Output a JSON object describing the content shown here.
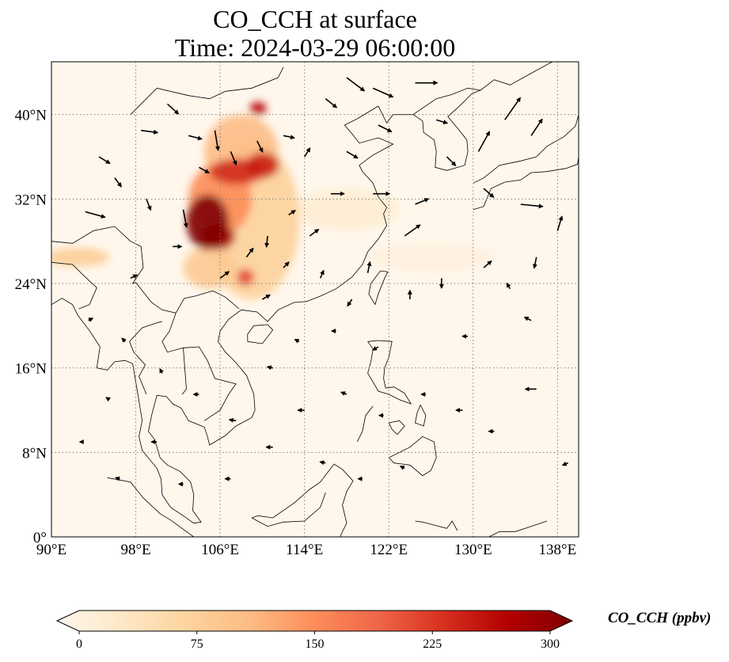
{
  "title": {
    "line1": "CO_CCH at surface",
    "line2": "Time: 2024-03-29 06:00:00"
  },
  "map": {
    "projection": "PlateCarree",
    "lon_range": [
      90,
      140
    ],
    "lat_range": [
      0,
      45
    ],
    "gridlines": true,
    "gridline_style": "dotted",
    "x_ticks": [
      {
        "lon": 90,
        "label": "90°E"
      },
      {
        "lon": 98,
        "label": "98°E"
      },
      {
        "lon": 106,
        "label": "106°E"
      },
      {
        "lon": 114,
        "label": "114°E"
      },
      {
        "lon": 122,
        "label": "122°E"
      },
      {
        "lon": 130,
        "label": "130°E"
      },
      {
        "lon": 138,
        "label": "138°E"
      }
    ],
    "y_ticks": [
      {
        "lat": 0,
        "label": "0°"
      },
      {
        "lat": 8,
        "label": "8°N"
      },
      {
        "lat": 16,
        "label": "16°N"
      },
      {
        "lat": 24,
        "label": "24°N"
      },
      {
        "lat": 32,
        "label": "32°N"
      },
      {
        "lat": 40,
        "label": "40°N"
      }
    ],
    "field": {
      "variable": "CO_CCH",
      "level": "surface",
      "colormap": "OrRd",
      "max_region": "Sichuan Basin (~104–106°E, 28–31°N)",
      "blobs": [
        {
          "lon": 104.8,
          "lat": 29.8,
          "rx": 2.0,
          "ry": 2.6,
          "value": 300
        },
        {
          "lon": 105.8,
          "lat": 28.4,
          "rx": 1.6,
          "ry": 1.2,
          "value": 270
        },
        {
          "lon": 107.6,
          "lat": 34.6,
          "rx": 2.6,
          "ry": 1.2,
          "value": 230
        },
        {
          "lon": 110.0,
          "lat": 35.2,
          "rx": 1.6,
          "ry": 1.2,
          "value": 240
        },
        {
          "lon": 109.6,
          "lat": 40.6,
          "rx": 0.8,
          "ry": 0.6,
          "value": 260
        },
        {
          "lon": 108.4,
          "lat": 24.6,
          "rx": 0.8,
          "ry": 0.8,
          "value": 210
        },
        {
          "lon": 106.0,
          "lat": 32.0,
          "rx": 3.0,
          "ry": 3.4,
          "value": 150
        },
        {
          "lon": 109.0,
          "lat": 30.0,
          "rx": 4.5,
          "ry": 7.5,
          "value": 80
        },
        {
          "lon": 108.0,
          "lat": 36.5,
          "rx": 3.5,
          "ry": 3.5,
          "value": 110
        },
        {
          "lon": 105.0,
          "lat": 25.5,
          "rx": 2.5,
          "ry": 2.0,
          "value": 90
        },
        {
          "lon": 92.5,
          "lat": 26.5,
          "rx": 3.0,
          "ry": 0.9,
          "value": 85
        },
        {
          "lon": 118.0,
          "lat": 31.0,
          "rx": 5.0,
          "ry": 2.0,
          "value": 25
        },
        {
          "lon": 126.0,
          "lat": 26.5,
          "rx": 6.0,
          "ry": 1.4,
          "value": 15
        }
      ]
    },
    "wind_vectors": [
      {
        "lon": 93.2,
        "lat": 30.8,
        "u": 1.8,
        "v": -0.5
      },
      {
        "lon": 96.0,
        "lat": 34.0,
        "u": 0.6,
        "v": -0.8
      },
      {
        "lon": 98.5,
        "lat": 38.5,
        "u": 1.5,
        "v": -0.2
      },
      {
        "lon": 101.0,
        "lat": 41.0,
        "u": 1.0,
        "v": -0.9
      },
      {
        "lon": 103.0,
        "lat": 38.0,
        "u": 1.2,
        "v": -0.3
      },
      {
        "lon": 104.0,
        "lat": 35.0,
        "u": 0.9,
        "v": -0.5
      },
      {
        "lon": 105.5,
        "lat": 38.5,
        "u": 0.3,
        "v": -1.8
      },
      {
        "lon": 107.0,
        "lat": 36.5,
        "u": 0.5,
        "v": -1.2
      },
      {
        "lon": 109.5,
        "lat": 37.5,
        "u": 0.5,
        "v": -1.0
      },
      {
        "lon": 112.0,
        "lat": 38.0,
        "u": 1.0,
        "v": -0.2
      },
      {
        "lon": 114.0,
        "lat": 36.0,
        "u": 0.5,
        "v": 0.8
      },
      {
        "lon": 116.0,
        "lat": 41.5,
        "u": 1.0,
        "v": -0.8
      },
      {
        "lon": 118.0,
        "lat": 43.5,
        "u": 1.6,
        "v": -1.2
      },
      {
        "lon": 120.5,
        "lat": 42.5,
        "u": 1.8,
        "v": -0.8
      },
      {
        "lon": 124.5,
        "lat": 43.0,
        "u": 2.0,
        "v": 0.0
      },
      {
        "lon": 121.0,
        "lat": 39.0,
        "u": 1.2,
        "v": -0.6
      },
      {
        "lon": 126.5,
        "lat": 39.5,
        "u": 1.0,
        "v": -0.3
      },
      {
        "lon": 127.5,
        "lat": 36.0,
        "u": 0.8,
        "v": -0.8
      },
      {
        "lon": 130.5,
        "lat": 36.5,
        "u": 1.0,
        "v": 1.8
      },
      {
        "lon": 133.0,
        "lat": 39.5,
        "u": 1.4,
        "v": 2.0
      },
      {
        "lon": 135.5,
        "lat": 38.0,
        "u": 1.0,
        "v": 1.5
      },
      {
        "lon": 131.0,
        "lat": 33.0,
        "u": 0.9,
        "v": -0.8
      },
      {
        "lon": 134.5,
        "lat": 31.5,
        "u": 2.0,
        "v": -0.2
      },
      {
        "lon": 138.0,
        "lat": 29.0,
        "u": 0.4,
        "v": 1.3
      },
      {
        "lon": 136.0,
        "lat": 26.5,
        "u": -0.2,
        "v": -1.0
      },
      {
        "lon": 124.5,
        "lat": 31.5,
        "u": 1.2,
        "v": 0.5
      },
      {
        "lon": 120.5,
        "lat": 32.5,
        "u": 1.5,
        "v": 0.0
      },
      {
        "lon": 123.5,
        "lat": 28.5,
        "u": 1.4,
        "v": 1.0
      },
      {
        "lon": 116.5,
        "lat": 32.5,
        "u": 1.2,
        "v": 0.0
      },
      {
        "lon": 114.5,
        "lat": 28.5,
        "u": 0.8,
        "v": 0.6
      },
      {
        "lon": 112.5,
        "lat": 30.5,
        "u": 0.6,
        "v": 0.4
      },
      {
        "lon": 110.5,
        "lat": 28.5,
        "u": -0.1,
        "v": -1.0
      },
      {
        "lon": 108.5,
        "lat": 26.5,
        "u": 0.6,
        "v": 0.8
      },
      {
        "lon": 106.0,
        "lat": 24.5,
        "u": 0.8,
        "v": 0.6
      },
      {
        "lon": 110.0,
        "lat": 22.5,
        "u": 0.7,
        "v": 0.4
      },
      {
        "lon": 112.0,
        "lat": 25.5,
        "u": 0.5,
        "v": 0.5
      },
      {
        "lon": 115.5,
        "lat": 24.5,
        "u": 0.3,
        "v": 0.7
      },
      {
        "lon": 118.5,
        "lat": 22.5,
        "u": -0.4,
        "v": -0.6
      },
      {
        "lon": 120.0,
        "lat": 25.0,
        "u": 0.2,
        "v": 1.0
      },
      {
        "lon": 124.0,
        "lat": 22.5,
        "u": 0.0,
        "v": 0.8
      },
      {
        "lon": 127.0,
        "lat": 24.5,
        "u": 0.0,
        "v": -0.9
      },
      {
        "lon": 131.0,
        "lat": 25.5,
        "u": 0.7,
        "v": 0.6
      },
      {
        "lon": 133.5,
        "lat": 23.5,
        "u": -0.3,
        "v": 0.5
      },
      {
        "lon": 129.5,
        "lat": 19.0,
        "u": -0.5,
        "v": 0.0
      },
      {
        "lon": 135.5,
        "lat": 20.5,
        "u": -0.6,
        "v": 0.3
      },
      {
        "lon": 136.0,
        "lat": 14.0,
        "u": -1.0,
        "v": 0.0
      },
      {
        "lon": 139.0,
        "lat": 7.0,
        "u": -0.5,
        "v": -0.2
      },
      {
        "lon": 121.0,
        "lat": 18.0,
        "u": -0.5,
        "v": -0.3
      },
      {
        "lon": 117.0,
        "lat": 19.5,
        "u": -0.4,
        "v": 0.0
      },
      {
        "lon": 113.5,
        "lat": 18.5,
        "u": -0.4,
        "v": 0.2
      },
      {
        "lon": 111.0,
        "lat": 16.0,
        "u": -0.5,
        "v": 0.1
      },
      {
        "lon": 114.0,
        "lat": 12.0,
        "u": -0.6,
        "v": 0.0
      },
      {
        "lon": 118.0,
        "lat": 13.5,
        "u": -0.5,
        "v": 0.2
      },
      {
        "lon": 121.5,
        "lat": 11.5,
        "u": -0.4,
        "v": 0.0
      },
      {
        "lon": 125.5,
        "lat": 13.5,
        "u": -0.4,
        "v": 0.0
      },
      {
        "lon": 129.0,
        "lat": 12.0,
        "u": -0.6,
        "v": 0.0
      },
      {
        "lon": 132.0,
        "lat": 10.0,
        "u": -0.5,
        "v": 0.0
      },
      {
        "lon": 116.0,
        "lat": 7.0,
        "u": -0.5,
        "v": 0.1
      },
      {
        "lon": 119.5,
        "lat": 5.5,
        "u": -0.4,
        "v": 0.0
      },
      {
        "lon": 123.5,
        "lat": 6.5,
        "u": -0.4,
        "v": 0.2
      },
      {
        "lon": 111.0,
        "lat": 8.5,
        "u": -0.6,
        "v": 0.0
      },
      {
        "lon": 107.5,
        "lat": 11.0,
        "u": -0.6,
        "v": 0.1
      },
      {
        "lon": 104.0,
        "lat": 13.5,
        "u": -0.5,
        "v": 0.0
      },
      {
        "lon": 100.5,
        "lat": 15.5,
        "u": -0.2,
        "v": 0.4
      },
      {
        "lon": 97.0,
        "lat": 18.5,
        "u": -0.3,
        "v": 0.3
      },
      {
        "lon": 93.5,
        "lat": 20.5,
        "u": 0.4,
        "v": 0.2
      },
      {
        "lon": 95.5,
        "lat": 13.0,
        "u": -0.3,
        "v": 0.2
      },
      {
        "lon": 100.0,
        "lat": 9.0,
        "u": -0.5,
        "v": 0.0
      },
      {
        "lon": 96.5,
        "lat": 5.5,
        "u": -0.4,
        "v": 0.1
      },
      {
        "lon": 102.5,
        "lat": 5.0,
        "u": -0.4,
        "v": 0.0
      },
      {
        "lon": 107.0,
        "lat": 5.5,
        "u": -0.5,
        "v": 0.0
      },
      {
        "lon": 93.0,
        "lat": 9.0,
        "u": -0.3,
        "v": 0.0
      },
      {
        "lon": 97.5,
        "lat": 24.5,
        "u": 0.6,
        "v": 0.3
      },
      {
        "lon": 101.5,
        "lat": 27.5,
        "u": 0.8,
        "v": 0.0
      },
      {
        "lon": 94.5,
        "lat": 36.0,
        "u": 1.0,
        "v": -0.6
      },
      {
        "lon": 99.0,
        "lat": 32.0,
        "u": 0.4,
        "v": -1.0
      },
      {
        "lon": 102.5,
        "lat": 31.0,
        "u": 0.3,
        "v": -1.6
      },
      {
        "lon": 118.0,
        "lat": 36.5,
        "u": 1.0,
        "v": -0.6
      }
    ],
    "coastlines": true
  },
  "colorbar": {
    "label": "CO_CCH (ppbv)",
    "vmin": 0,
    "vmax": 300,
    "extend": "both",
    "ticks": [
      {
        "value": 0,
        "label": "0"
      },
      {
        "value": 75,
        "label": "75"
      },
      {
        "value": 150,
        "label": "150"
      },
      {
        "value": 225,
        "label": "225"
      },
      {
        "value": 300,
        "label": "300"
      }
    ],
    "colors": [
      "#fff7ec",
      "#fee8c8",
      "#fdd49e",
      "#fdbb84",
      "#fc8d59",
      "#ef6548",
      "#d7301f",
      "#b30000",
      "#7f0000"
    ]
  }
}
